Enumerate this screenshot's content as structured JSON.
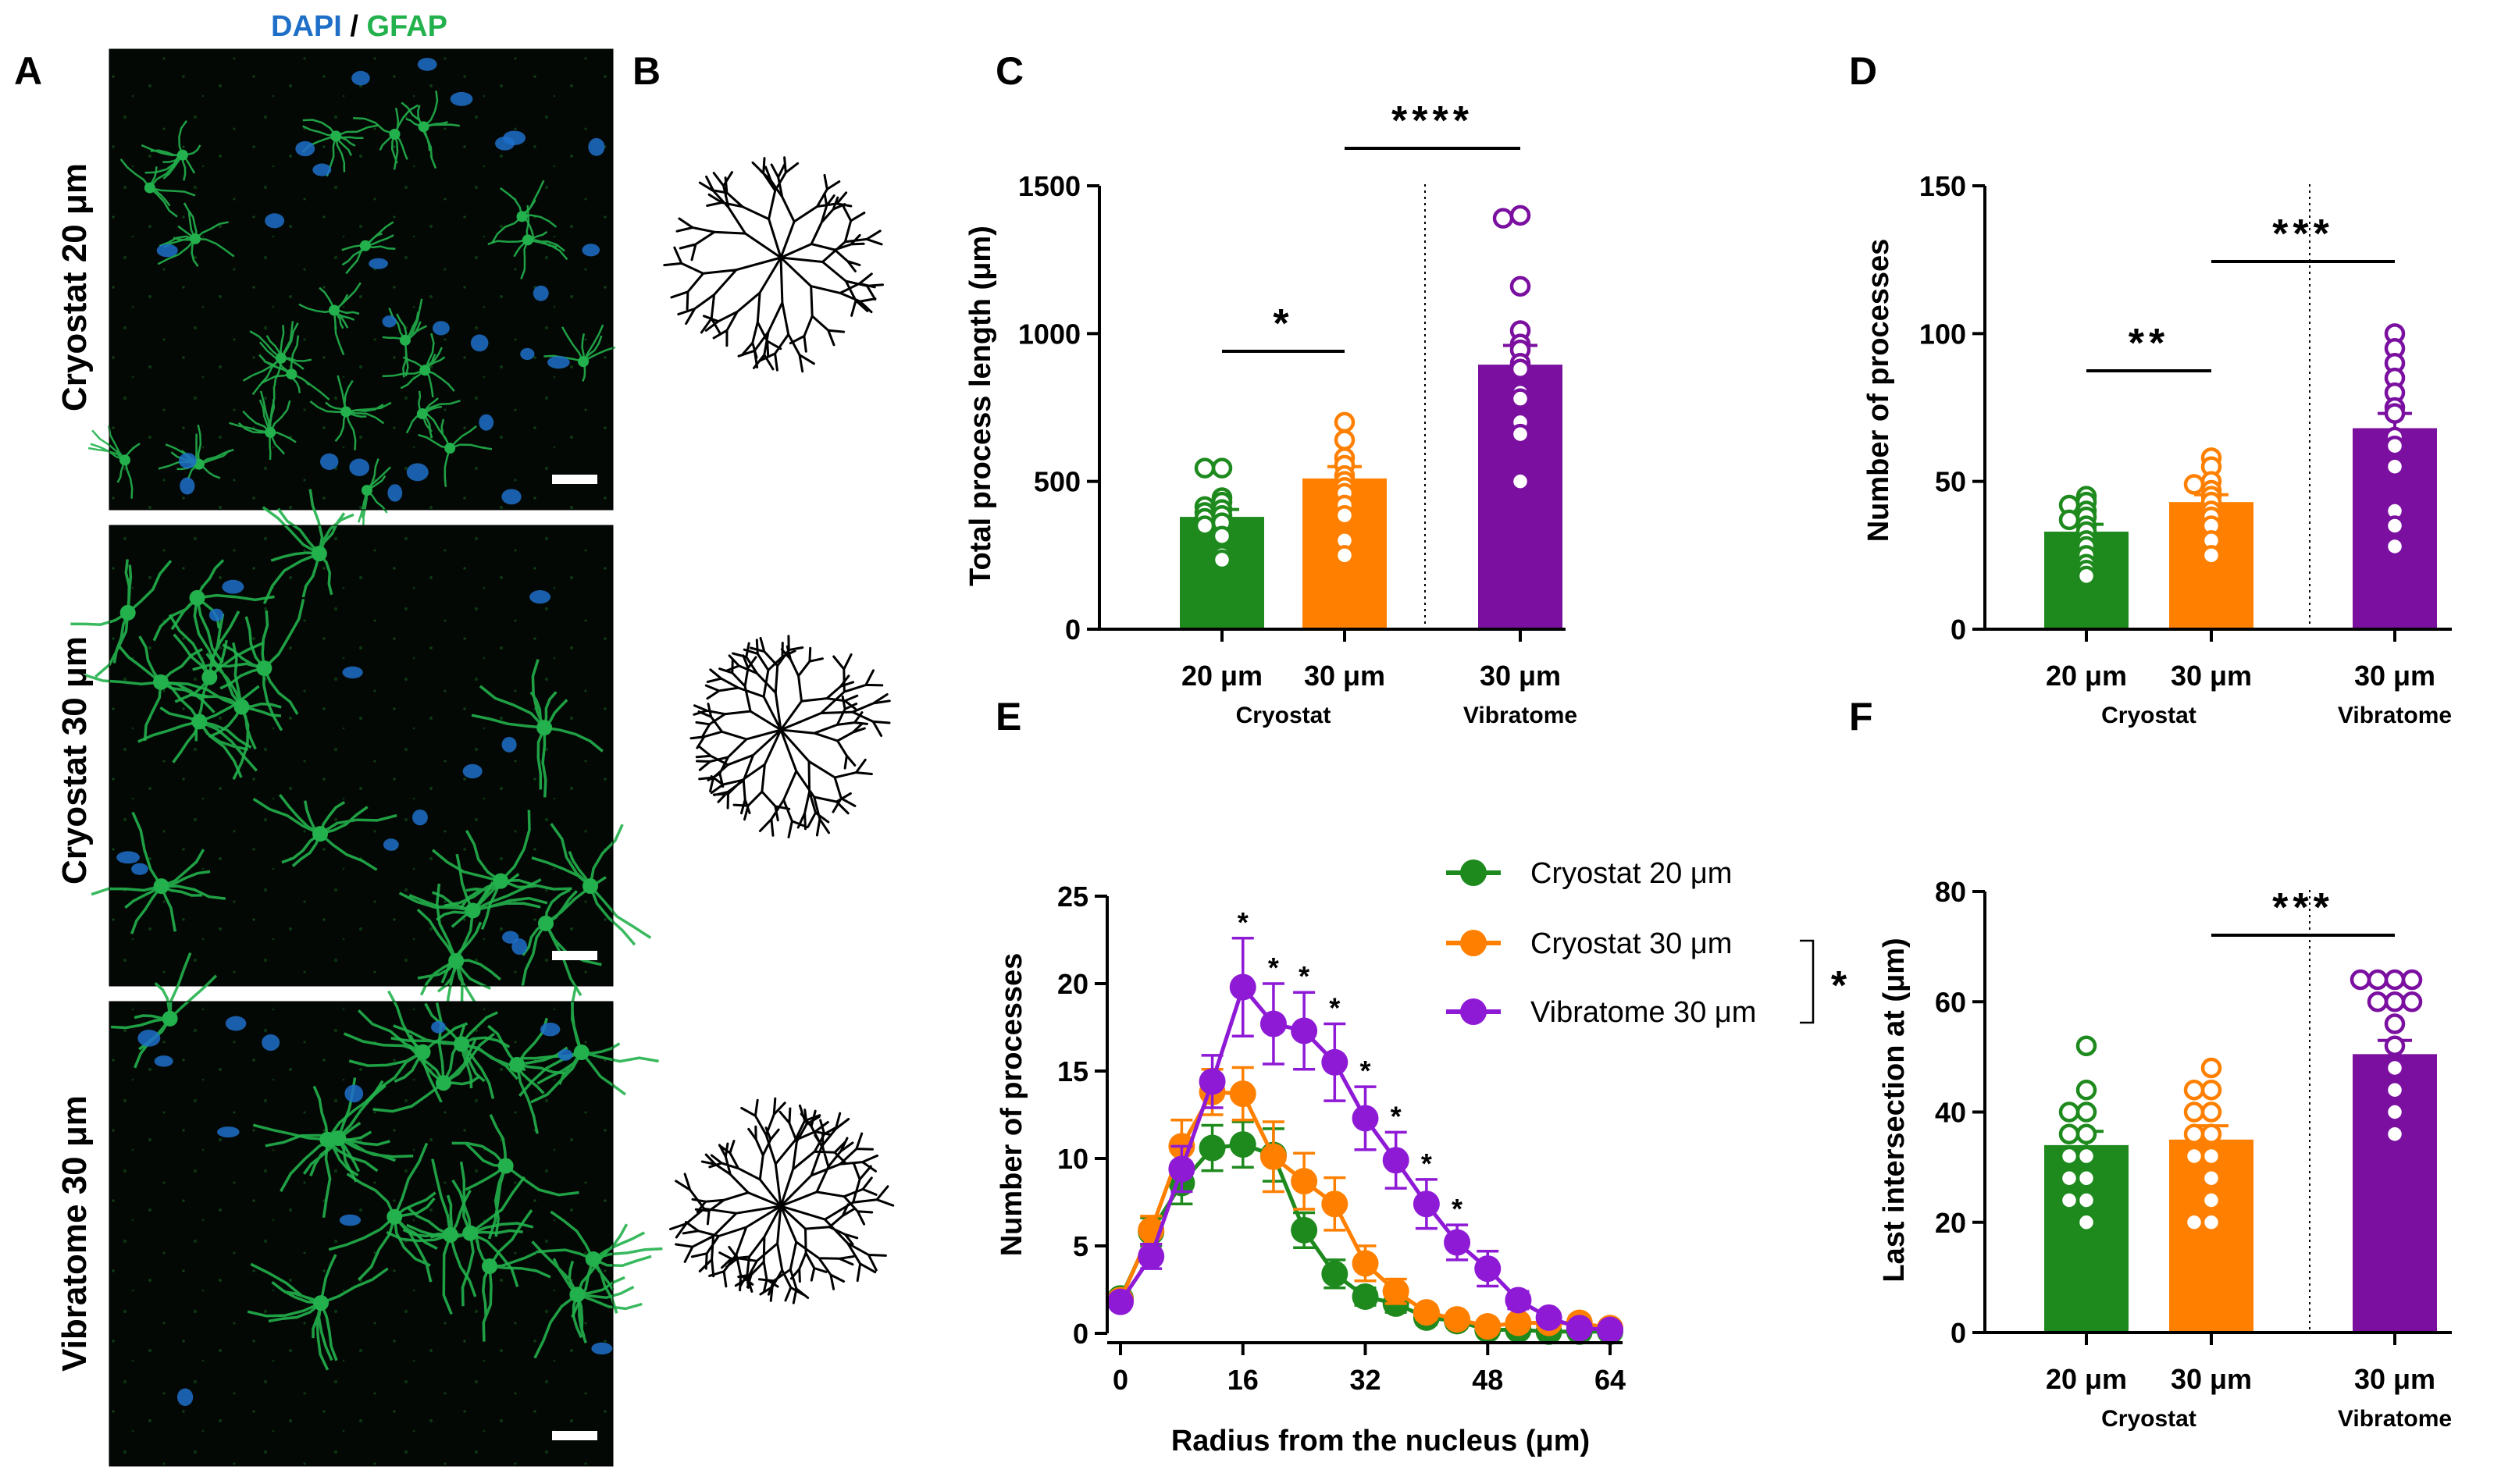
{
  "figure": {
    "panel_labels": [
      "A",
      "B",
      "C",
      "D",
      "E",
      "F"
    ],
    "panel_a": {
      "header_dapi": "DAPI",
      "header_sep": " / ",
      "header_gfap": "GFAP",
      "row_labels": [
        "Cryostat 20 μm",
        "Cryostat 30 μm",
        "Vibratome 30 μm"
      ],
      "colors": {
        "dapi": "#1f6fc9",
        "gfap": "#22b14c"
      }
    },
    "colors": {
      "cryo20": "#1e8a1e",
      "cryo30": "#ff8000",
      "vib30": "#7a0fa0"
    }
  },
  "chart_data": [
    {
      "panel": "C",
      "type": "bar",
      "ylabel": "Total process length (μm)",
      "ylim": [
        0,
        1500
      ],
      "yticks": [
        0,
        500,
        1000,
        1500
      ],
      "categories": [
        "20 μm",
        "30 μm",
        "30 μm"
      ],
      "groups": [
        "Cryostat",
        "Vibratome"
      ],
      "means": [
        380,
        510,
        895
      ],
      "sem": [
        25,
        40,
        65
      ],
      "points": [
        [
          545,
          545,
          445,
          430,
          415,
          405,
          395,
          385,
          375,
          360,
          350,
          315,
          250,
          235
        ],
        [
          700,
          640,
          580,
          555,
          520,
          500,
          480,
          460,
          420,
          385,
          300,
          250
        ],
        [
          1400,
          1390,
          1160,
          1010,
          965,
          945,
          900,
          880,
          800,
          780,
          700,
          660,
          500
        ]
      ],
      "significance": [
        {
          "label": "*",
          "from": 0,
          "to": 1
        },
        {
          "label": "****",
          "from": 1,
          "to": 2
        }
      ]
    },
    {
      "panel": "D",
      "type": "bar",
      "ylabel": "Number of processes",
      "ylim": [
        0,
        150
      ],
      "yticks": [
        0,
        50,
        100,
        150
      ],
      "categories": [
        "20 μm",
        "30 μm",
        "30 μm"
      ],
      "groups": [
        "Cryostat",
        "Vibratome"
      ],
      "means": [
        33,
        43,
        68
      ],
      "sem": [
        2.5,
        2.5,
        5
      ],
      "points": [
        [
          45,
          43,
          42,
          40,
          38,
          37,
          35,
          33,
          30,
          28,
          25,
          22,
          20,
          18
        ],
        [
          58,
          55,
          50,
          49,
          47,
          45,
          43,
          40,
          38,
          35,
          30,
          25
        ],
        [
          100,
          95,
          90,
          85,
          80,
          75,
          73,
          65,
          62,
          55,
          40,
          35,
          28
        ]
      ],
      "significance": [
        {
          "label": "**",
          "from": 0,
          "to": 1
        },
        {
          "label": "***",
          "from": 1,
          "to": 2
        }
      ]
    },
    {
      "panel": "E",
      "type": "line",
      "xlabel": "Radius from the nucleus (μm)",
      "ylabel": "Number of processes",
      "xlim": [
        0,
        64
      ],
      "ylim": [
        0,
        25
      ],
      "xticks": [
        0,
        16,
        32,
        48,
        64
      ],
      "yticks": [
        0,
        5,
        10,
        15,
        20,
        25
      ],
      "x": [
        0,
        4,
        8,
        12,
        16,
        20,
        24,
        28,
        32,
        36,
        40,
        44,
        48,
        52,
        56,
        60,
        64
      ],
      "series": [
        {
          "name": "Cryostat 20 μm",
          "values": [
            2.0,
            5.8,
            8.6,
            10.6,
            10.8,
            10.2,
            5.9,
            3.4,
            2.1,
            1.7,
            0.9,
            0.7,
            0.2,
            0.2,
            0.1,
            0.1,
            0.1
          ],
          "err": [
            0.3,
            0.8,
            1.2,
            1.3,
            1.3,
            1.5,
            1.0,
            0.8,
            0.5,
            0.5,
            0.4,
            0.4,
            0.2,
            0.2,
            0.1,
            0.1,
            0.1
          ]
        },
        {
          "name": "Cryostat 30 μm",
          "values": [
            1.9,
            5.9,
            10.7,
            13.8,
            13.7,
            10.1,
            8.7,
            7.4,
            4.0,
            2.4,
            1.2,
            0.8,
            0.4,
            0.6,
            0.6,
            0.6,
            0.3
          ],
          "err": [
            0.3,
            0.8,
            1.5,
            1.3,
            1.5,
            2.0,
            1.6,
            1.5,
            1.0,
            0.7,
            0.4,
            0.3,
            0.2,
            0.3,
            0.3,
            0.4,
            0.2
          ]
        },
        {
          "name": "Vibratome 30 μm",
          "values": [
            1.8,
            4.4,
            9.4,
            14.4,
            19.8,
            17.7,
            17.3,
            15.5,
            12.3,
            9.9,
            7.4,
            5.2,
            3.7,
            1.9,
            0.9,
            0.3,
            0.2
          ],
          "err": [
            0.3,
            0.7,
            1.3,
            1.5,
            2.8,
            2.3,
            2.2,
            2.2,
            1.8,
            1.6,
            1.4,
            1.0,
            1.0,
            0.5,
            0.3,
            0.2,
            0.1
          ]
        }
      ],
      "point_annotations": {
        "label": "*",
        "x": [
          16,
          20,
          24,
          28,
          32,
          36,
          40,
          44
        ]
      },
      "legend_significance": "*"
    },
    {
      "panel": "F",
      "type": "bar",
      "ylabel": "Last intersection at (μm)",
      "ylim": [
        0,
        80
      ],
      "yticks": [
        0,
        20,
        40,
        60,
        80
      ],
      "categories": [
        "20 μm",
        "30 μm",
        "30 μm"
      ],
      "groups": [
        "Cryostat",
        "Vibratome"
      ],
      "means": [
        34,
        35,
        50.5
      ],
      "sem": [
        2.5,
        2.5,
        2.5
      ],
      "points": [
        [
          52,
          44,
          40,
          40,
          36,
          36,
          32,
          32,
          28,
          28,
          24,
          24,
          20
        ],
        [
          48,
          44,
          44,
          40,
          40,
          36,
          36,
          32,
          32,
          28,
          24,
          20,
          20
        ],
        [
          64,
          64,
          64,
          64,
          60,
          60,
          60,
          56,
          52,
          48,
          44,
          40,
          36
        ]
      ],
      "significance": [
        {
          "label": "***",
          "from": 1,
          "to": 2
        }
      ]
    }
  ]
}
